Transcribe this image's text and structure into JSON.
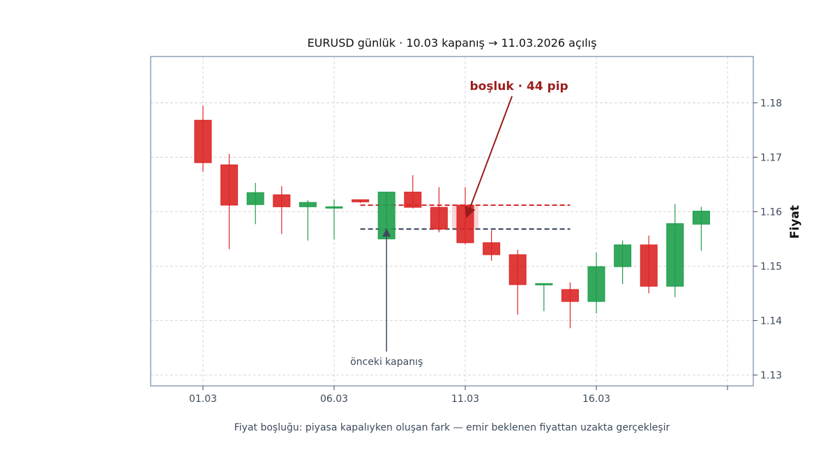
{
  "chart_data": {
    "type": "candlestick",
    "title": "EURUSD günlük · 10.03 kapanış → 11.03.2026 açılış",
    "ylabel": "Fiyat",
    "xlabel": "",
    "caption": "Fiyat boşluğu: piyasa kapalıyken oluşan fark — emir beklenen fiyattan uzakta gerçekleşir",
    "ylim": [
      1.128,
      1.1885
    ],
    "xlim": [
      -2,
      21
    ],
    "y_ticks": [
      1.13,
      1.14,
      1.15,
      1.16,
      1.17,
      1.18
    ],
    "y_tick_labels": [
      "1.13",
      "1.14",
      "1.15",
      "1.16",
      "1.17",
      "1.18"
    ],
    "x_ticks": [
      0,
      5,
      10,
      15,
      20
    ],
    "x_tick_labels": [
      "01.03",
      "06.03",
      "11.03",
      "16.03",
      ""
    ],
    "grid": true,
    "y_axis_side": "right",
    "candles": [
      {
        "x": 0,
        "open": 1.1768,
        "high": 1.1795,
        "low": 1.1673,
        "close": 1.169
      },
      {
        "x": 1,
        "open": 1.1686,
        "high": 1.1706,
        "low": 1.1531,
        "close": 1.1612
      },
      {
        "x": 2,
        "open": 1.1613,
        "high": 1.1653,
        "low": 1.1577,
        "close": 1.1635
      },
      {
        "x": 3,
        "open": 1.1631,
        "high": 1.1647,
        "low": 1.1559,
        "close": 1.1609
      },
      {
        "x": 4,
        "open": 1.1609,
        "high": 1.1621,
        "low": 1.1547,
        "close": 1.1617
      },
      {
        "x": 5,
        "open": 1.1607,
        "high": 1.1622,
        "low": 1.1549,
        "close": 1.1609
      },
      {
        "x": 6,
        "open": 1.1622,
        "high": 1.1622,
        "low": 1.1616,
        "close": 1.1618
      },
      {
        "x": 7,
        "open": 1.155,
        "high": 1.1636,
        "low": 1.155,
        "close": 1.1636
      },
      {
        "x": 8,
        "open": 1.1636,
        "high": 1.1667,
        "low": 1.1606,
        "close": 1.1608
      },
      {
        "x": 9,
        "open": 1.1608,
        "high": 1.1645,
        "low": 1.1562,
        "close": 1.1568
      },
      {
        "x": 10,
        "open": 1.1612,
        "high": 1.1645,
        "low": 1.154,
        "close": 1.1543
      },
      {
        "x": 11,
        "open": 1.1543,
        "high": 1.1566,
        "low": 1.151,
        "close": 1.1521
      },
      {
        "x": 12,
        "open": 1.1521,
        "high": 1.153,
        "low": 1.1411,
        "close": 1.1466
      },
      {
        "x": 13,
        "open": 1.1466,
        "high": 1.1468,
        "low": 1.1417,
        "close": 1.1468
      },
      {
        "x": 14,
        "open": 1.1457,
        "high": 1.147,
        "low": 1.1386,
        "close": 1.1435
      },
      {
        "x": 15,
        "open": 1.1435,
        "high": 1.1525,
        "low": 1.1413,
        "close": 1.1499
      },
      {
        "x": 16,
        "open": 1.1499,
        "high": 1.1547,
        "low": 1.1467,
        "close": 1.1539
      },
      {
        "x": 17,
        "open": 1.1539,
        "high": 1.1556,
        "low": 1.145,
        "close": 1.1463
      },
      {
        "x": 18,
        "open": 1.1463,
        "high": 1.1614,
        "low": 1.1443,
        "close": 1.1578
      },
      {
        "x": 19,
        "open": 1.1577,
        "high": 1.1609,
        "low": 1.1528,
        "close": 1.1601
      }
    ],
    "reference_lines": [
      {
        "name": "11.03 açılış",
        "y": 1.1612,
        "x_from": 6.0,
        "x_to": 14.0,
        "color": "#d62728",
        "style": "dashed"
      },
      {
        "name": "10.03 kapanış",
        "y": 1.1568,
        "x_from": 6.0,
        "x_to": 14.0,
        "color": "#2f3e57",
        "style": "dashed"
      }
    ],
    "gap_band": {
      "x": 10,
      "from": 1.1568,
      "to": 1.1612
    },
    "annotations": [
      {
        "text": "boşluk · 44 pip",
        "arrow_to": {
          "x": 10.05,
          "y": 1.159
        },
        "text_at": {
          "x": 12.05,
          "y": 1.183
        },
        "color": "#9b1c1c",
        "bold": true
      },
      {
        "text": "önceki kapanış",
        "arrow_to": {
          "x": 7.0,
          "y": 1.1568
        },
        "text_at": {
          "x": 7.0,
          "y": 1.1325
        },
        "color": "#3d4a5c",
        "bold": false
      }
    ],
    "colors": {
      "up": "#1e9e4a",
      "down": "#dc2626",
      "grid": "#cccccc",
      "frame": "#8ea0b8",
      "tick_text": "#3d4a5c",
      "title_text": "#111111",
      "gap_band": "#f5b5b5"
    }
  }
}
